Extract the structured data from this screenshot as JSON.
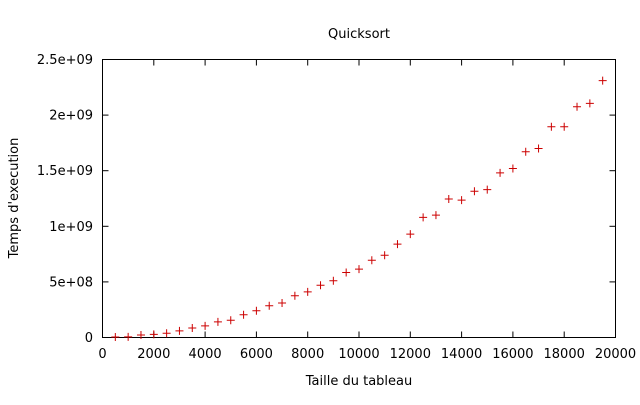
{
  "chart_data": {
    "type": "scatter",
    "title": "Quicksort",
    "xlabel": "Taille du tableau",
    "ylabel": "Temps d'execution",
    "xlim": [
      0,
      20000
    ],
    "ylim": [
      0,
      2500000000
    ],
    "x_ticks": [
      0,
      2000,
      4000,
      6000,
      8000,
      10000,
      12000,
      14000,
      16000,
      18000,
      20000
    ],
    "x_tick_labels": [
      "0",
      "2000",
      "4000",
      "6000",
      "8000",
      "10000",
      "12000",
      "14000",
      "16000",
      "18000",
      "20000"
    ],
    "y_ticks": [
      0,
      500000000,
      1000000000,
      1500000000,
      2000000000,
      2500000000
    ],
    "y_tick_labels": [
      "0",
      "5e+08",
      "1e+09",
      "1.5e+09",
      "2e+09",
      "2.5e+09"
    ],
    "marker": "plus",
    "grid": false,
    "series": [
      {
        "color": "#cc0000",
        "x": [
          500,
          1000,
          1500,
          2000,
          2500,
          3000,
          3500,
          4000,
          4500,
          5000,
          5500,
          6000,
          6500,
          7000,
          7500,
          8000,
          8500,
          9000,
          9500,
          10000,
          10500,
          11000,
          11500,
          12000,
          12500,
          13000,
          13500,
          14000,
          14500,
          15000,
          15500,
          16000,
          16500,
          17000,
          17500,
          18000,
          18500,
          19000,
          19500
        ],
        "y": [
          5000000,
          6000000,
          22000000,
          28000000,
          38000000,
          60000000,
          85000000,
          105000000,
          140000000,
          155000000,
          205000000,
          240000000,
          285000000,
          310000000,
          375000000,
          410000000,
          470000000,
          510000000,
          585000000,
          615000000,
          695000000,
          740000000,
          840000000,
          930000000,
          1080000000,
          1100000000,
          1245000000,
          1235000000,
          1315000000,
          1330000000,
          1480000000,
          1520000000,
          1670000000,
          1700000000,
          1895000000,
          1895000000,
          2075000000,
          2105000000,
          2310000000
        ]
      }
    ]
  }
}
